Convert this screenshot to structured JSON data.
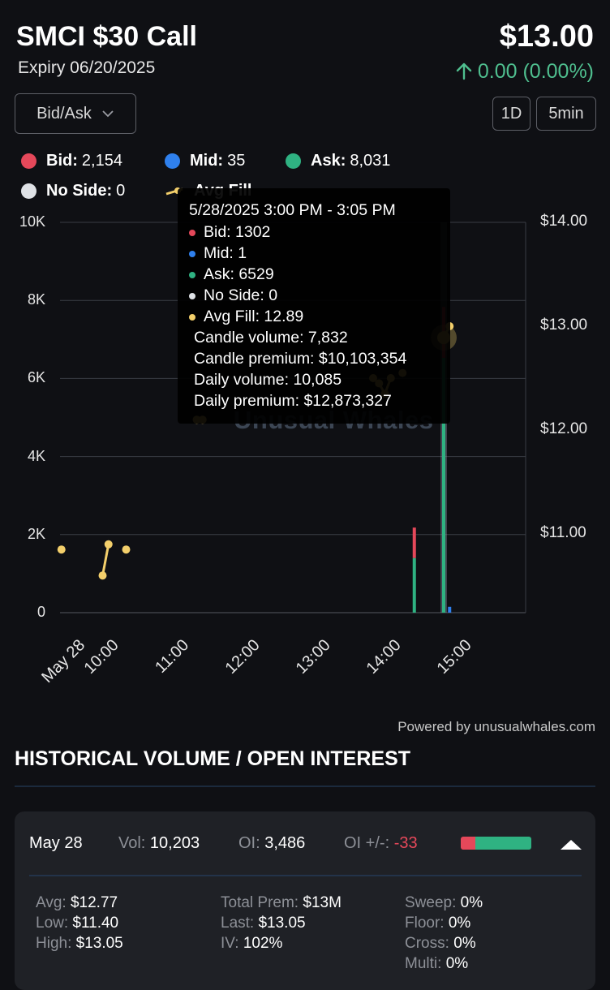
{
  "header": {
    "title": "SMCI $30 Call",
    "expiry": "Expiry 06/20/2025",
    "price": "$13.00",
    "change": "0.00 (0.00%)"
  },
  "controls": {
    "dropdown_label": "Bid/Ask",
    "period": "1D",
    "interval": "5min"
  },
  "legend": [
    {
      "label": "Bid:",
      "value": "2,154",
      "color": "#e5485a"
    },
    {
      "label": "Mid:",
      "value": "35",
      "color": "#2f80ed"
    },
    {
      "label": "Ask:",
      "value": "8,031",
      "color": "#2fb282"
    },
    {
      "label": "No Side:",
      "value": "0",
      "color": "#dfe2e6"
    },
    {
      "label": "Avg Fill",
      "value": "",
      "color": "#f3cf6b"
    }
  ],
  "tooltip": {
    "time": "5/28/2025 3:00 PM - 3:05 PM",
    "bid": "Bid: 1302",
    "mid": "Mid: 1",
    "ask": "Ask: 6529",
    "noside": "No Side: 0",
    "avgfill": "Avg Fill: 12.89",
    "candle_volume": "Candle volume: 7,832",
    "candle_premium": "Candle premium: $10,103,354",
    "daily_volume": "Daily volume: 10,085",
    "daily_premium": "Daily premium: $12,873,327"
  },
  "watermark": "Unusual Whales",
  "chart_data": {
    "type": "bar",
    "x_axis_labels": [
      "May 28",
      "10:00",
      "11:00",
      "12:00",
      "13:00",
      "14:00",
      "15:00"
    ],
    "y_left_ticks": [
      "0",
      "2K",
      "4K",
      "6K",
      "8K",
      "10K"
    ],
    "y_left_range": [
      0,
      10000
    ],
    "y_right_ticks": [
      "$11.00",
      "$12.00",
      "$13.00",
      "$14.00"
    ],
    "y_right_range": [
      10.25,
      14.0
    ],
    "volume_bars": [
      {
        "time": "14:35",
        "ask": 1400,
        "bid": 780,
        "mid": 0
      },
      {
        "time": "15:00",
        "ask": 6529,
        "bid": 1302,
        "mid": 1
      },
      {
        "time": "15:05",
        "ask": 0,
        "bid": 0,
        "mid": 150
      }
    ],
    "avg_fill_points": [
      {
        "time": "09:35",
        "price": 10.85,
        "segment": 1
      },
      {
        "time": "10:10",
        "price": 10.6,
        "segment": 2
      },
      {
        "time": "10:15",
        "price": 10.9,
        "segment": 2
      },
      {
        "time": "10:30",
        "price": 10.85,
        "segment": 3
      },
      {
        "time": "11:30",
        "price": 12.1,
        "segment": 4
      },
      {
        "time": "11:35",
        "price": 12.1,
        "segment": 4
      },
      {
        "time": "14:00",
        "price": 12.5,
        "segment": 5
      },
      {
        "time": "14:05",
        "price": 12.45,
        "segment": 5
      },
      {
        "time": "14:10",
        "price": 12.35,
        "segment": 5
      },
      {
        "time": "14:15",
        "price": 12.5,
        "segment": 5
      },
      {
        "time": "14:25",
        "price": 12.55,
        "segment": 6
      },
      {
        "time": "15:00",
        "price": 12.89,
        "segment": 7
      },
      {
        "time": "15:05",
        "price": 13.0,
        "segment": 7
      }
    ],
    "hover_time": "15:00",
    "grid": true,
    "legend_position": "top"
  },
  "powered_by": "Powered by unusualwhales.com",
  "history": {
    "title": "HISTORICAL VOLUME / OPEN INTEREST",
    "date": "May 28",
    "vol_label": "Vol:",
    "vol": "10,203",
    "oi_label": "OI:",
    "oi": "3,486",
    "oi_change_label": "OI +/-:",
    "oi_change": "-33",
    "bid_share": 0.21,
    "stats": {
      "avg_k": "Avg:",
      "avg": "$12.77",
      "low_k": "Low:",
      "low": "$11.40",
      "high_k": "High:",
      "high": "$13.05",
      "total_prem_k": "Total Prem:",
      "total_prem": "$13M",
      "last_k": "Last:",
      "last": "$13.05",
      "iv_k": "IV:",
      "iv": "102%",
      "sweep_k": "Sweep:",
      "sweep": "0%",
      "floor_k": "Floor:",
      "floor": "0%",
      "cross_k": "Cross:",
      "cross": "0%",
      "multi_k": "Multi:",
      "multi": "0%"
    }
  },
  "colors": {
    "background": "#0f1014",
    "card": "#1f2126",
    "positive": "#4fbf8f",
    "negative": "#e5485a",
    "grid": "#3a3d45"
  }
}
